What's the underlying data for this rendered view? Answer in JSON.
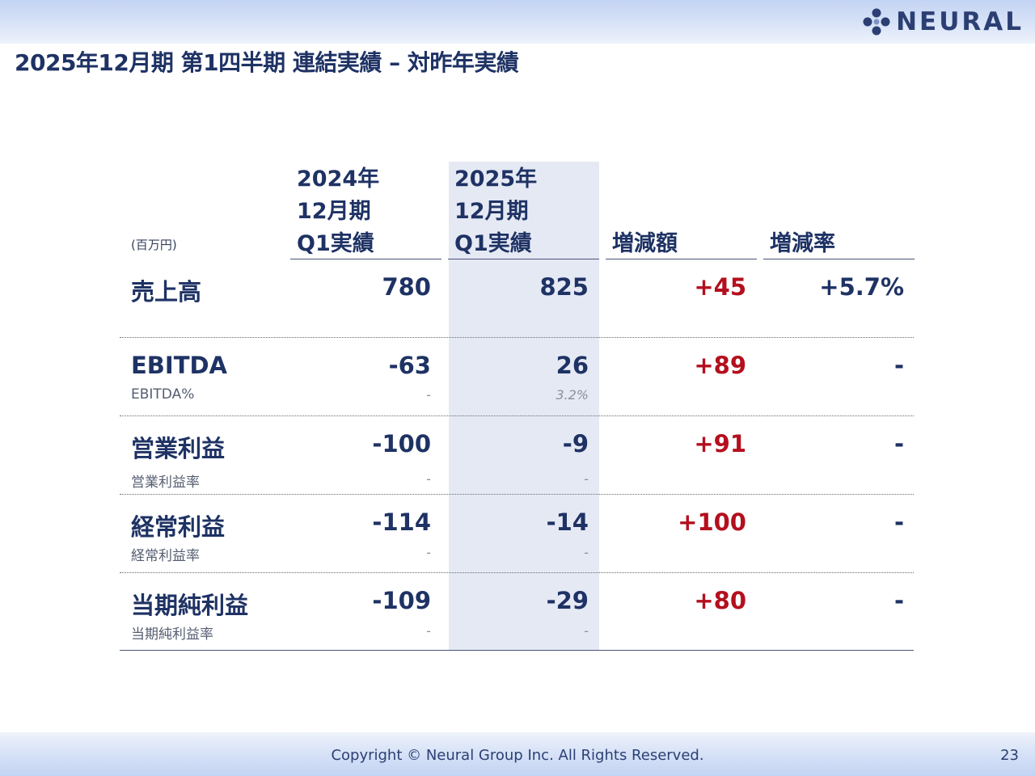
{
  "header": {
    "logo_text": "NEURAL",
    "title": "2025年12月期 第1四半期 連結実績 – 対昨年実績"
  },
  "table": {
    "unit": "(百万円)",
    "columns": [
      {
        "lines": [
          "2024年",
          "12月期",
          "Q1実績"
        ]
      },
      {
        "lines": [
          "2025年",
          "12月期",
          "Q1実績"
        ]
      },
      {
        "lines": [
          "増減額"
        ]
      },
      {
        "lines": [
          "増減率"
        ]
      }
    ],
    "rows": [
      {
        "label": "売上高",
        "sublabel": "",
        "values": [
          "780",
          "825",
          "+45",
          "+5.7%"
        ],
        "subs": [
          "",
          ""
        ]
      },
      {
        "label": "EBITDA",
        "sublabel": "EBITDA%",
        "values": [
          "-63",
          "26",
          "+89",
          "-"
        ],
        "subs": [
          "-",
          "3.2%"
        ]
      },
      {
        "label": "営業利益",
        "sublabel": "営業利益率",
        "values": [
          "-100",
          "-9",
          "+91",
          "-"
        ],
        "subs": [
          "-",
          "-"
        ]
      },
      {
        "label": "経常利益",
        "sublabel": "経常利益率",
        "values": [
          "-114",
          "-14",
          "+100",
          "-"
        ],
        "subs": [
          "-",
          "-"
        ]
      },
      {
        "label": "当期純利益",
        "sublabel": "当期純利益率",
        "values": [
          "-109",
          "-29",
          "+80",
          "-"
        ],
        "subs": [
          "-",
          "-"
        ]
      }
    ]
  },
  "footer": {
    "copyright": "Copyright © Neural Group Inc. All Rights Reserved.",
    "page_number": "23"
  },
  "colors": {
    "navy": "#1e3264",
    "highlight_column": "#e5e9f4",
    "positive_change": "#b40f1e",
    "band": "#c3d3f3"
  }
}
